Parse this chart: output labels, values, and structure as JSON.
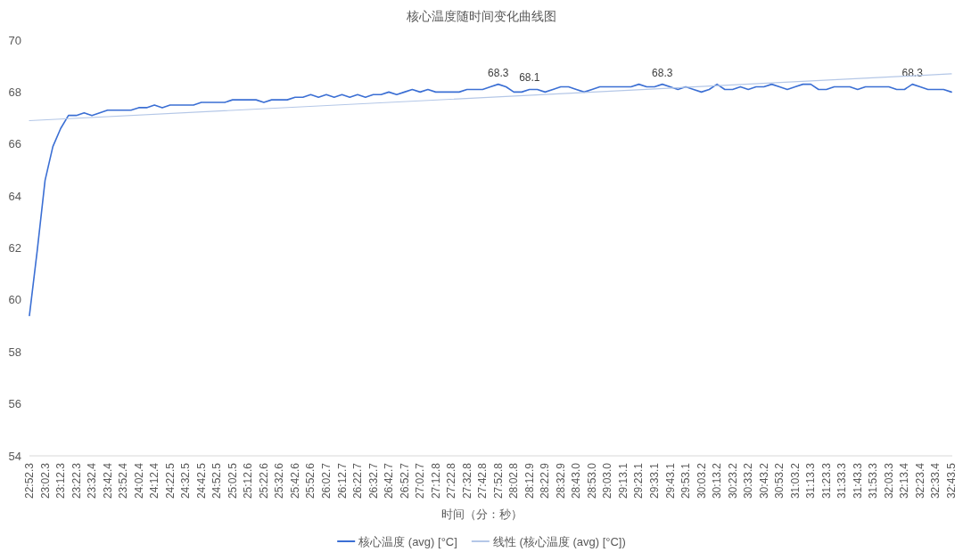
{
  "chart_data": {
    "type": "line",
    "title": "核心温度随时间变化曲线图",
    "xlabel": "时间（分：秒）",
    "categories": [
      "22:52.3",
      null,
      "23:02.3",
      null,
      "23:12.3",
      null,
      "23:22.3",
      null,
      "23:32.4",
      null,
      "23:42.4",
      null,
      "23:52.4",
      null,
      "24:02.4",
      null,
      "24:12.4",
      null,
      "24:22.5",
      null,
      "24:32.5",
      null,
      "24:42.5",
      null,
      "24:52.5",
      null,
      "25:02.5",
      null,
      "25:12.6",
      null,
      "25:22.6",
      null,
      "25:32.6",
      null,
      "25:42.6",
      null,
      "25:52.6",
      null,
      "26:02.7",
      null,
      "26:12.7",
      null,
      "26:22.7",
      null,
      "26:32.7",
      null,
      "26:42.7",
      null,
      "26:52.7",
      null,
      "27:02.7",
      null,
      "27:12.8",
      null,
      "27:22.8",
      null,
      "27:32.8",
      null,
      "27:42.8",
      null,
      "27:52.8",
      null,
      "28:02.8",
      null,
      "28:12.9",
      null,
      "28:22.9",
      null,
      "28:32.9",
      null,
      "28:43.0",
      null,
      "28:53.0",
      null,
      "29:03.0",
      null,
      "29:13.1",
      null,
      "29:23.1",
      null,
      "29:33.1",
      null,
      "29:43.1",
      null,
      "29:53.1",
      null,
      "30:03.2",
      null,
      "30:13.2",
      null,
      "30:23.2",
      null,
      "30:33.2",
      null,
      "30:43.2",
      null,
      "30:53.2",
      null,
      "31:03.2",
      null,
      "31:13.3",
      null,
      "31:23.3",
      null,
      "31:33.3",
      null,
      "31:43.3",
      null,
      "31:53.3",
      null,
      "32:03.3",
      null,
      "32:13.4",
      null,
      "32:23.4",
      null,
      "32:33.4",
      null,
      "32:43.5"
    ],
    "ylim": [
      54,
      70
    ],
    "yticks": [
      54,
      56,
      58,
      60,
      62,
      64,
      66,
      68,
      70
    ],
    "legend": "bottom",
    "series": [
      {
        "name": "核心温度 (avg) [°C]",
        "color": "#3b6fd4",
        "values": [
          59.4,
          61.9,
          64.6,
          65.9,
          66.6,
          67.1,
          67.1,
          67.2,
          67.1,
          67.2,
          67.3,
          67.3,
          67.3,
          67.3,
          67.4,
          67.4,
          67.5,
          67.4,
          67.5,
          67.5,
          67.5,
          67.5,
          67.6,
          67.6,
          67.6,
          67.6,
          67.7,
          67.7,
          67.7,
          67.7,
          67.6,
          67.7,
          67.7,
          67.7,
          67.8,
          67.8,
          67.9,
          67.8,
          67.9,
          67.8,
          67.9,
          67.8,
          67.9,
          67.8,
          67.9,
          67.9,
          68.0,
          67.9,
          68.0,
          68.1,
          68.0,
          68.1,
          68.0,
          68.0,
          68.0,
          68.0,
          68.1,
          68.1,
          68.1,
          68.2,
          68.3,
          68.2,
          68.0,
          68.0,
          68.1,
          68.1,
          68.0,
          68.1,
          68.2,
          68.2,
          68.1,
          68.0,
          68.1,
          68.2,
          68.2,
          68.2,
          68.2,
          68.2,
          68.3,
          68.2,
          68.2,
          68.3,
          68.2,
          68.1,
          68.2,
          68.1,
          68.0,
          68.1,
          68.3,
          68.1,
          68.1,
          68.2,
          68.1,
          68.2,
          68.2,
          68.3,
          68.2,
          68.1,
          68.2,
          68.3,
          68.3,
          68.1,
          68.1,
          68.2,
          68.2,
          68.2,
          68.1,
          68.2,
          68.2,
          68.2,
          68.2,
          68.1,
          68.1,
          68.3,
          68.2,
          68.1,
          68.1,
          68.1,
          68.0
        ],
        "value_labels": [
          null,
          null,
          null,
          null,
          null,
          null,
          null,
          null,
          null,
          null,
          null,
          null,
          null,
          null,
          null,
          null,
          null,
          null,
          null,
          null,
          null,
          null,
          null,
          null,
          null,
          null,
          null,
          null,
          null,
          null,
          null,
          null,
          null,
          null,
          null,
          null,
          null,
          null,
          null,
          null,
          null,
          null,
          null,
          null,
          null,
          null,
          null,
          null,
          null,
          null,
          null,
          null,
          null,
          null,
          null,
          null,
          null,
          null,
          null,
          null,
          "68.3",
          null,
          null,
          null,
          "68.1",
          null,
          null,
          null,
          null,
          null,
          null,
          null,
          null,
          null,
          null,
          null,
          null,
          null,
          null,
          null,
          null,
          "68.3",
          null,
          null,
          null,
          null,
          null,
          null,
          null,
          null,
          null,
          null,
          null,
          null,
          null,
          null,
          null,
          null,
          null,
          null,
          null,
          null,
          null,
          null,
          null,
          null,
          null,
          null,
          null,
          null,
          null,
          null,
          null,
          "68.3",
          null,
          null,
          null,
          null,
          null
        ]
      },
      {
        "name": "线性 (核心温度 (avg) [°C])",
        "color": "#b4c7e7",
        "x": [
          "22:52.3",
          "32:43.5"
        ],
        "values": [
          66.9,
          68.7
        ]
      }
    ]
  }
}
